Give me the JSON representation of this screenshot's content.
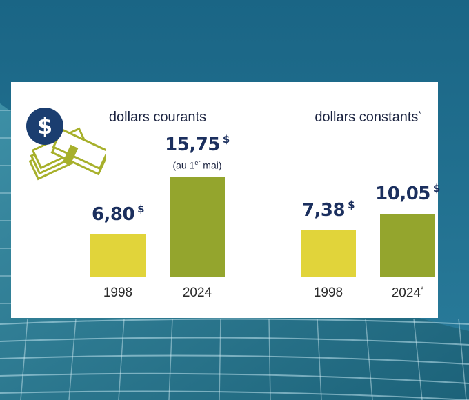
{
  "colors": {
    "bar_1998": "#e1d43a",
    "bar_2024": "#94a52d",
    "value_text": "#1b2f5e",
    "icon_circle": "#1b3e70",
    "icon_bills": "#a7b02b",
    "background_sky": "#1f6c8c"
  },
  "icon": {
    "name": "money-icon",
    "symbol": "$"
  },
  "chart_data": [
    {
      "type": "bar",
      "title": "dollars courants",
      "title_mark": "",
      "categories": [
        "1998",
        "2024"
      ],
      "category_marks": [
        "",
        ""
      ],
      "values": [
        6.8,
        15.75
      ],
      "value_labels": [
        "6,80",
        "15,75"
      ],
      "unit": "$",
      "notes": [
        "",
        "(au 1er mai)"
      ],
      "note_parts": [
        {
          "before": "",
          "sup": "",
          "after": ""
        },
        {
          "before": "(au 1",
          "sup": "er",
          "after": " mai)"
        }
      ],
      "ylim": [
        0,
        16
      ],
      "grid": false
    },
    {
      "type": "bar",
      "title": "dollars constants",
      "title_mark": "*",
      "categories": [
        "1998",
        "2024"
      ],
      "category_marks": [
        "",
        "*"
      ],
      "values": [
        7.38,
        10.05
      ],
      "value_labels": [
        "7,38",
        "10,05"
      ],
      "unit": "$",
      "notes": [
        "",
        ""
      ],
      "note_parts": [
        {
          "before": "",
          "sup": "",
          "after": ""
        },
        {
          "before": "",
          "sup": "",
          "after": ""
        }
      ],
      "ylim": [
        0,
        16
      ],
      "grid": false
    }
  ]
}
